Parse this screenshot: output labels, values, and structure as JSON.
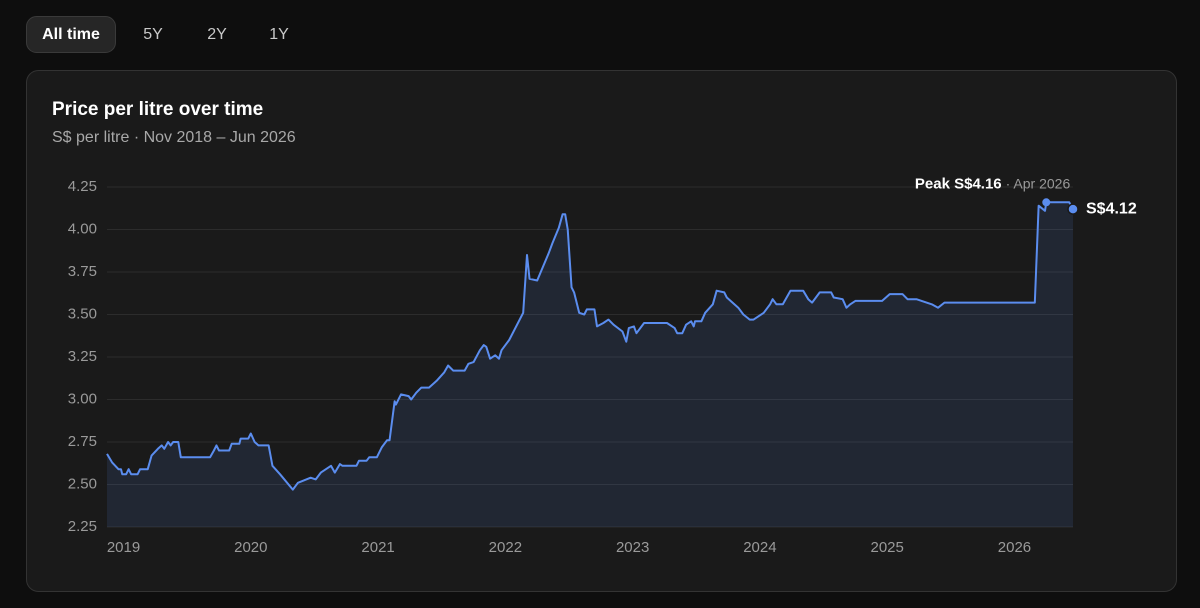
{
  "tabs": [
    "All time",
    "5Y",
    "2Y",
    "1Y"
  ],
  "active_tab": 0,
  "chart_data": {
    "type": "line",
    "title": "Price per litre over time",
    "subtitle": "S$ per litre · Nov 2018 – Jun 2026",
    "x": [
      2018.87,
      2018.91,
      2018.96,
      2018.98,
      2018.99,
      2019.02,
      2019.04,
      2019.06,
      2019.11,
      2019.13,
      2019.19,
      2019.22,
      2019.27,
      2019.3,
      2019.32,
      2019.35,
      2019.37,
      2019.39,
      2019.43,
      2019.45,
      2019.68,
      2019.71,
      2019.73,
      2019.75,
      2019.83,
      2019.85,
      2019.91,
      2019.92,
      2019.98,
      2020.0,
      2020.03,
      2020.06,
      2020.14,
      2020.17,
      2020.23,
      2020.33,
      2020.37,
      2020.47,
      2020.51,
      2020.55,
      2020.63,
      2020.66,
      2020.7,
      2020.72,
      2020.83,
      2020.85,
      2020.91,
      2020.93,
      2020.99,
      2021.03,
      2021.07,
      2021.09,
      2021.13,
      2021.14,
      2021.18,
      2021.24,
      2021.26,
      2021.3,
      2021.34,
      2021.4,
      2021.46,
      2021.52,
      2021.55,
      2021.59,
      2021.68,
      2021.71,
      2021.75,
      2021.8,
      2021.83,
      2021.85,
      2021.88,
      2021.92,
      2021.95,
      2021.97,
      2022.03,
      2022.14,
      2022.17,
      2022.19,
      2022.25,
      2022.34,
      2022.37,
      2022.42,
      2022.45,
      2022.47,
      2022.49,
      2022.52,
      2022.54,
      2022.58,
      2022.62,
      2022.64,
      2022.7,
      2022.72,
      2022.77,
      2022.81,
      2022.85,
      2022.92,
      2022.95,
      2022.97,
      2023.01,
      2023.03,
      2023.09,
      2023.27,
      2023.33,
      2023.35,
      2023.39,
      2023.42,
      2023.46,
      2023.48,
      2023.49,
      2023.54,
      2023.57,
      2023.63,
      2023.66,
      2023.72,
      2023.74,
      2023.83,
      2023.87,
      2023.92,
      2023.95,
      2024.03,
      2024.08,
      2024.1,
      2024.13,
      2024.18,
      2024.24,
      2024.34,
      2024.38,
      2024.41,
      2024.44,
      2024.47,
      2024.56,
      2024.58,
      2024.65,
      2024.68,
      2024.71,
      2024.75,
      2024.96,
      2025.02,
      2025.12,
      2025.16,
      2025.23,
      2025.35,
      2025.4,
      2025.45,
      2026.16,
      2026.19,
      2026.24,
      2026.25,
      2026.43,
      2026.46
    ],
    "series": [
      {
        "color": "#5b8def",
        "values": [
          2.68,
          2.63,
          2.59,
          2.59,
          2.56,
          2.56,
          2.59,
          2.56,
          2.56,
          2.59,
          2.59,
          2.67,
          2.71,
          2.73,
          2.71,
          2.75,
          2.73,
          2.75,
          2.75,
          2.66,
          2.66,
          2.7,
          2.73,
          2.7,
          2.7,
          2.74,
          2.74,
          2.77,
          2.77,
          2.8,
          2.75,
          2.73,
          2.73,
          2.61,
          2.56,
          2.47,
          2.51,
          2.54,
          2.53,
          2.57,
          2.61,
          2.57,
          2.62,
          2.61,
          2.61,
          2.64,
          2.64,
          2.66,
          2.66,
          2.72,
          2.76,
          2.76,
          2.99,
          2.97,
          3.03,
          3.02,
          3.0,
          3.04,
          3.07,
          3.07,
          3.11,
          3.16,
          3.2,
          3.17,
          3.17,
          3.21,
          3.22,
          3.29,
          3.32,
          3.31,
          3.24,
          3.26,
          3.24,
          3.29,
          3.35,
          3.51,
          3.85,
          3.71,
          3.7,
          3.86,
          3.92,
          4.01,
          4.09,
          4.09,
          4.0,
          3.66,
          3.63,
          3.51,
          3.5,
          3.53,
          3.53,
          3.43,
          3.45,
          3.47,
          3.44,
          3.4,
          3.34,
          3.42,
          3.43,
          3.39,
          3.45,
          3.45,
          3.42,
          3.39,
          3.39,
          3.44,
          3.46,
          3.43,
          3.46,
          3.46,
          3.51,
          3.56,
          3.64,
          3.63,
          3.6,
          3.54,
          3.5,
          3.47,
          3.47,
          3.51,
          3.56,
          3.59,
          3.56,
          3.56,
          3.64,
          3.64,
          3.59,
          3.57,
          3.6,
          3.63,
          3.63,
          3.6,
          3.59,
          3.54,
          3.56,
          3.58,
          3.58,
          3.62,
          3.62,
          3.59,
          3.59,
          3.56,
          3.54,
          3.57,
          3.57,
          4.14,
          4.11,
          4.16,
          4.16,
          4.12
        ]
      }
    ],
    "xlim": [
      2018.87,
      2026.46
    ],
    "xticks": [
      2019,
      2020,
      2021,
      2022,
      2023,
      2024,
      2025,
      2026
    ],
    "ylim": [
      2.25,
      4.25
    ],
    "yticks": [
      {
        "value": 2.25,
        "label": "2.25"
      },
      {
        "value": 2.5,
        "label": "2.50"
      },
      {
        "value": 2.75,
        "label": "2.75"
      },
      {
        "value": 3,
        "label": "3.00"
      },
      {
        "value": 3.25,
        "label": "3.25"
      },
      {
        "value": 3.5,
        "label": "3.50"
      },
      {
        "value": 3.75,
        "label": "3.75"
      },
      {
        "value": 4,
        "label": "4.00"
      },
      {
        "value": 4.25,
        "label": "4.25"
      }
    ],
    "grid": true,
    "annotations": {
      "peak": {
        "x": 2026.25,
        "value": 4.16,
        "label": "Peak S$4.16",
        "date": "· Apr 2026"
      },
      "last": {
        "x": 2026.46,
        "value": 4.12,
        "label": "S$4.12"
      }
    }
  }
}
